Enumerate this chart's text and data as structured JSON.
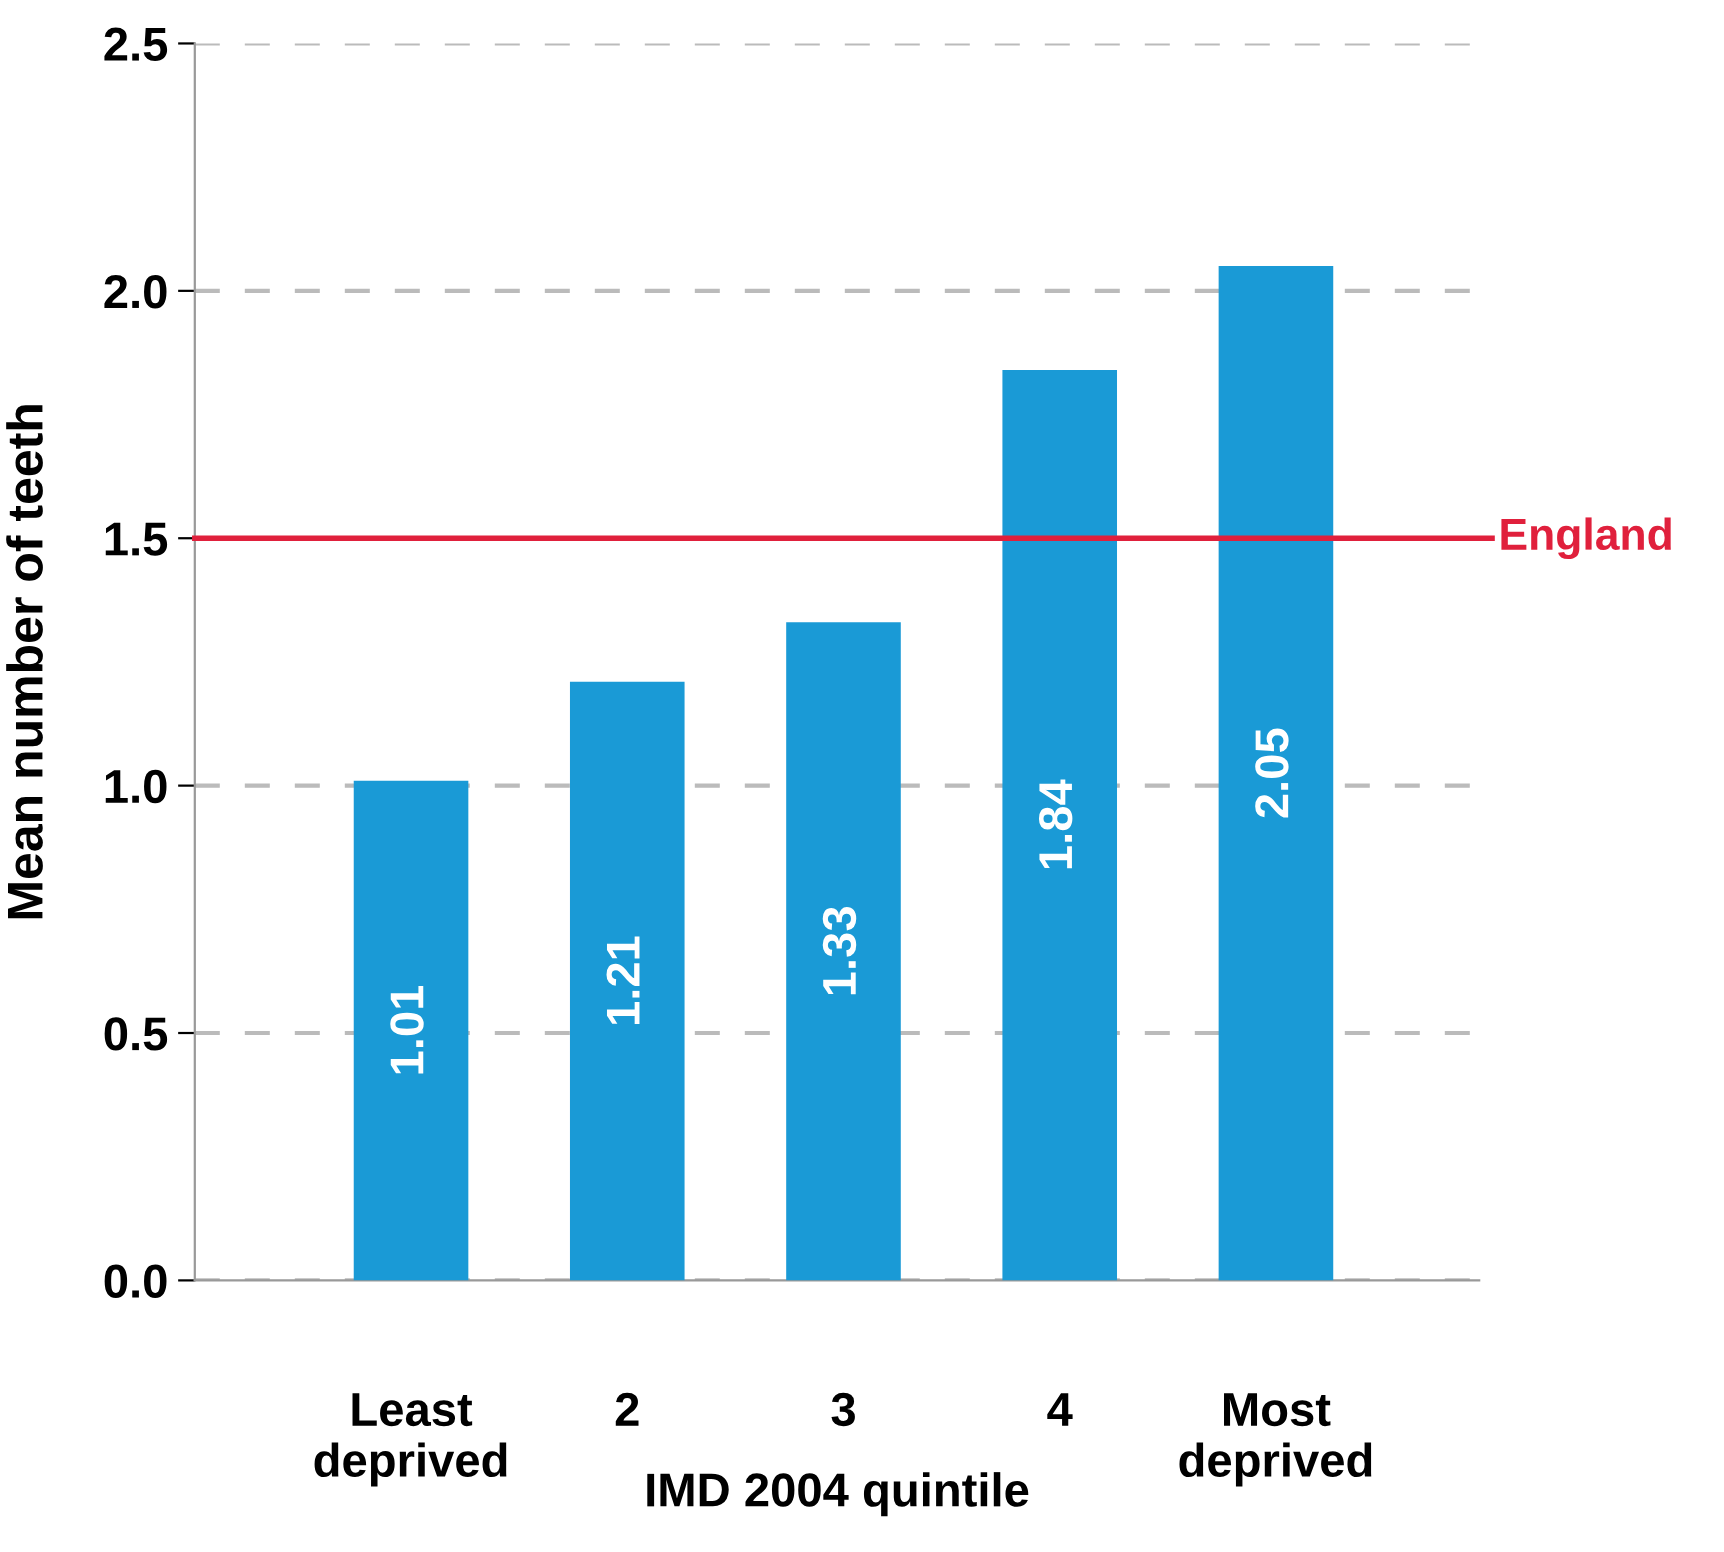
{
  "chart_data": {
    "type": "bar",
    "xlabel": "IMD 2004 quintile",
    "ylabel": "Mean number of teeth",
    "categories": [
      "Least\ndeprived",
      "2",
      "3",
      "4",
      "Most\ndeprived"
    ],
    "values": [
      1.01,
      1.21,
      1.33,
      1.84,
      2.05
    ],
    "color": "#1a9ad6",
    "data_labels": true,
    "ylim": [
      0,
      2.5
    ],
    "yticks": [
      {
        "value": 0,
        "label": "0.0"
      },
      0.5,
      {
        "value": 1,
        "label": "1.0"
      },
      1.5,
      {
        "value": 2,
        "label": "2.0"
      },
      2.5
    ],
    "grid": "y",
    "ref_lines": [
      {
        "axis": "y",
        "value": 1.5,
        "label": "England",
        "color": "#e0203c",
        "line_style": "solid"
      }
    ]
  }
}
